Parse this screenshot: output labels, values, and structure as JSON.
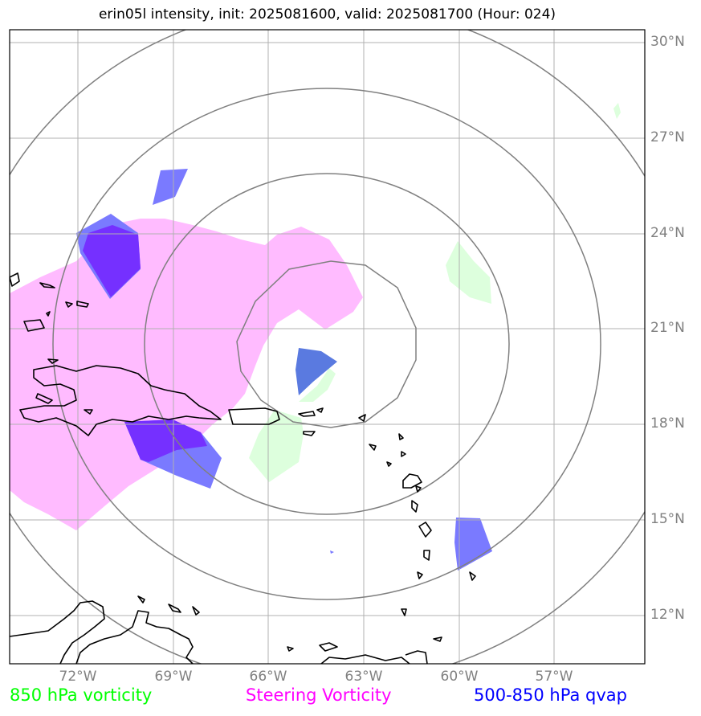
{
  "title": "erin05l intensity, init: 2025081600, valid: 2025081700 (Hour: 024)",
  "lat_labels": [
    "30°N",
    "27°N",
    "24°N",
    "21°N",
    "18°N",
    "15°N",
    "12°N"
  ],
  "lon_labels": [
    "72°W",
    "69°W",
    "66°W",
    "63°W",
    "60°W",
    "57°W"
  ],
  "legend": [
    {
      "label": "850 hPa vorticity",
      "color": "#00ff00"
    },
    {
      "label": "Steering Vorticity",
      "color": "#ff00ff"
    },
    {
      "label": "500-850 hPa qvap",
      "color": "#0000ff"
    }
  ],
  "colors": {
    "steering_fill": "#ffbbff",
    "qvap_fill": "#7a7aff",
    "qvap_dark": "#7530ff",
    "vort850_fill": "#ddffdd",
    "range_rings": "#808080",
    "gridlines": "#b0b0b0",
    "coastline": "#000000"
  }
}
